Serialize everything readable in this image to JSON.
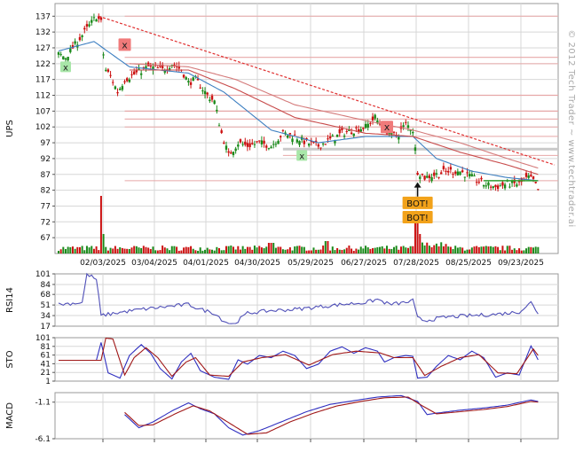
{
  "chart_data": [
    {
      "type": "candlestick",
      "ylabel": "UPS",
      "y_ticks": [
        137,
        132,
        127,
        122,
        117,
        112,
        107,
        102,
        97,
        92,
        87,
        82,
        77,
        72,
        67
      ],
      "ylim": [
        62,
        141
      ],
      "date_ticks": [
        "02/03/2025",
        "03/04/2025",
        "04/01/2025",
        "04/30/2025",
        "05/29/2025",
        "06/27/2025",
        "07/28/2025",
        "08/25/2025",
        "09/23/2025"
      ],
      "close_path": [
        {
          "i": 0,
          "v": 125
        },
        {
          "i": 3,
          "v": 124
        },
        {
          "i": 6,
          "v": 127
        },
        {
          "i": 10,
          "v": 131
        },
        {
          "i": 14,
          "v": 135
        },
        {
          "i": 16,
          "v": 137
        },
        {
          "i": 18,
          "v": 135
        },
        {
          "i": 19,
          "v": 125
        },
        {
          "i": 20,
          "v": 120
        },
        {
          "i": 22,
          "v": 118
        },
        {
          "i": 25,
          "v": 113
        },
        {
          "i": 28,
          "v": 117
        },
        {
          "i": 33,
          "v": 119
        },
        {
          "i": 38,
          "v": 121
        },
        {
          "i": 44,
          "v": 120
        },
        {
          "i": 48,
          "v": 122
        },
        {
          "i": 52,
          "v": 120
        },
        {
          "i": 55,
          "v": 116
        },
        {
          "i": 58,
          "v": 117
        },
        {
          "i": 63,
          "v": 112
        },
        {
          "i": 66,
          "v": 110
        },
        {
          "i": 69,
          "v": 100
        },
        {
          "i": 72,
          "v": 93
        },
        {
          "i": 76,
          "v": 97
        },
        {
          "i": 80,
          "v": 96
        },
        {
          "i": 85,
          "v": 97
        },
        {
          "i": 90,
          "v": 96
        },
        {
          "i": 95,
          "v": 100
        },
        {
          "i": 100,
          "v": 99
        },
        {
          "i": 105,
          "v": 97
        },
        {
          "i": 110,
          "v": 96
        },
        {
          "i": 115,
          "v": 98
        },
        {
          "i": 120,
          "v": 100
        },
        {
          "i": 125,
          "v": 101
        },
        {
          "i": 130,
          "v": 102
        },
        {
          "i": 134,
          "v": 105
        },
        {
          "i": 138,
          "v": 101
        },
        {
          "i": 143,
          "v": 99
        },
        {
          "i": 147,
          "v": 103
        },
        {
          "i": 150,
          "v": 101
        },
        {
          "i": 151,
          "v": 95
        },
        {
          "i": 152,
          "v": 88
        },
        {
          "i": 155,
          "v": 86
        },
        {
          "i": 160,
          "v": 87
        },
        {
          "i": 165,
          "v": 88
        },
        {
          "i": 170,
          "v": 88
        },
        {
          "i": 175,
          "v": 86
        },
        {
          "i": 180,
          "v": 84
        },
        {
          "i": 185,
          "v": 83
        },
        {
          "i": 190,
          "v": 84
        },
        {
          "i": 195,
          "v": 84
        },
        {
          "i": 199,
          "v": 86
        },
        {
          "i": 201,
          "v": 85
        },
        {
          "i": 203,
          "v": 82
        }
      ],
      "moving_averages": [
        {
          "color": "#3d7fc1",
          "points": [
            {
              "i": 0,
              "v": 126
            },
            {
              "i": 15,
              "v": 129
            },
            {
              "i": 30,
              "v": 121
            },
            {
              "i": 55,
              "v": 119
            },
            {
              "i": 70,
              "v": 113
            },
            {
              "i": 90,
              "v": 101
            },
            {
              "i": 110,
              "v": 97
            },
            {
              "i": 130,
              "v": 99
            },
            {
              "i": 150,
              "v": 99
            },
            {
              "i": 160,
              "v": 92
            },
            {
              "i": 175,
              "v": 88
            },
            {
              "i": 190,
              "v": 86
            },
            {
              "i": 203,
              "v": 85
            }
          ]
        },
        {
          "color": "#c84b4b",
          "points": [
            {
              "i": 30,
              "v": 120
            },
            {
              "i": 55,
              "v": 120
            },
            {
              "i": 75,
              "v": 114
            },
            {
              "i": 100,
              "v": 105
            },
            {
              "i": 130,
              "v": 100
            },
            {
              "i": 150,
              "v": 99
            },
            {
              "i": 170,
              "v": 94
            },
            {
              "i": 190,
              "v": 90
            },
            {
              "i": 203,
              "v": 87
            }
          ]
        },
        {
          "color": "#d47a7a",
          "points": [
            {
              "i": 30,
              "v": 122
            },
            {
              "i": 55,
              "v": 121
            },
            {
              "i": 75,
              "v": 117
            },
            {
              "i": 100,
              "v": 109
            },
            {
              "i": 130,
              "v": 104
            },
            {
              "i": 150,
              "v": 101
            },
            {
              "i": 170,
              "v": 97
            },
            {
              "i": 190,
              "v": 92
            },
            {
              "i": 203,
              "v": 89
            }
          ]
        }
      ],
      "horizontal_levels": [
        137,
        124,
        122,
        112,
        107,
        104.5,
        102,
        99,
        95,
        93,
        85
      ],
      "trendline": {
        "from": {
          "i": 17,
          "v": 137
        },
        "to": {
          "i": 210,
          "v": 90
        }
      },
      "markers": [
        {
          "label": "x",
          "kind": "sell",
          "i": 28,
          "v": 128
        },
        {
          "label": "x",
          "kind": "buy",
          "i": 3,
          "v": 121
        },
        {
          "label": "x",
          "kind": "buy",
          "i": 103,
          "v": 93
        },
        {
          "label": "x",
          "kind": "sell",
          "i": 139,
          "v": 102
        },
        {
          "label": "BOT!",
          "kind": "signal",
          "i": 152,
          "v": 78
        },
        {
          "label": "BOT!",
          "kind": "signal",
          "i": 152,
          "v": 73.5
        }
      ]
    },
    {
      "type": "line",
      "ylabel": "RSI14",
      "y_ticks": [
        101,
        84,
        68,
        51,
        34,
        17
      ],
      "ylim": [
        17,
        101
      ],
      "points": [
        {
          "i": 0,
          "v": 52
        },
        {
          "i": 10,
          "v": 55
        },
        {
          "i": 12,
          "v": 101
        },
        {
          "i": 16,
          "v": 92
        },
        {
          "i": 18,
          "v": 34
        },
        {
          "i": 24,
          "v": 38
        },
        {
          "i": 35,
          "v": 44
        },
        {
          "i": 45,
          "v": 48
        },
        {
          "i": 55,
          "v": 52
        },
        {
          "i": 60,
          "v": 44
        },
        {
          "i": 66,
          "v": 38
        },
        {
          "i": 70,
          "v": 25
        },
        {
          "i": 74,
          "v": 20
        },
        {
          "i": 80,
          "v": 38
        },
        {
          "i": 90,
          "v": 42
        },
        {
          "i": 100,
          "v": 44
        },
        {
          "i": 110,
          "v": 48
        },
        {
          "i": 120,
          "v": 52
        },
        {
          "i": 130,
          "v": 55
        },
        {
          "i": 135,
          "v": 60
        },
        {
          "i": 140,
          "v": 52
        },
        {
          "i": 147,
          "v": 55
        },
        {
          "i": 150,
          "v": 58
        },
        {
          "i": 152,
          "v": 30
        },
        {
          "i": 155,
          "v": 26
        },
        {
          "i": 165,
          "v": 32
        },
        {
          "i": 175,
          "v": 34
        },
        {
          "i": 185,
          "v": 36
        },
        {
          "i": 195,
          "v": 40
        },
        {
          "i": 200,
          "v": 55
        },
        {
          "i": 203,
          "v": 38
        }
      ]
    },
    {
      "type": "line",
      "ylabel": "STO",
      "y_ticks": [
        101,
        81,
        61,
        41,
        21,
        1
      ],
      "ylim": [
        1,
        101
      ],
      "series": [
        {
          "color": "#3030c0",
          "points": [
            {
              "i": 0,
              "v": 49
            },
            {
              "i": 16,
              "v": 49
            },
            {
              "i": 18,
              "v": 90
            },
            {
              "i": 21,
              "v": 20
            },
            {
              "i": 26,
              "v": 8
            },
            {
              "i": 30,
              "v": 60
            },
            {
              "i": 35,
              "v": 85
            },
            {
              "i": 39,
              "v": 65
            },
            {
              "i": 43,
              "v": 30
            },
            {
              "i": 48,
              "v": 6
            },
            {
              "i": 52,
              "v": 45
            },
            {
              "i": 56,
              "v": 65
            },
            {
              "i": 60,
              "v": 25
            },
            {
              "i": 66,
              "v": 10
            },
            {
              "i": 72,
              "v": 5
            },
            {
              "i": 76,
              "v": 50
            },
            {
              "i": 80,
              "v": 40
            },
            {
              "i": 85,
              "v": 60
            },
            {
              "i": 90,
              "v": 55
            },
            {
              "i": 95,
              "v": 70
            },
            {
              "i": 100,
              "v": 60
            },
            {
              "i": 105,
              "v": 30
            },
            {
              "i": 110,
              "v": 40
            },
            {
              "i": 115,
              "v": 70
            },
            {
              "i": 120,
              "v": 80
            },
            {
              "i": 125,
              "v": 65
            },
            {
              "i": 130,
              "v": 78
            },
            {
              "i": 135,
              "v": 70
            },
            {
              "i": 138,
              "v": 45
            },
            {
              "i": 142,
              "v": 55
            },
            {
              "i": 147,
              "v": 60
            },
            {
              "i": 150,
              "v": 58
            },
            {
              "i": 152,
              "v": 8
            },
            {
              "i": 156,
              "v": 10
            },
            {
              "i": 160,
              "v": 35
            },
            {
              "i": 165,
              "v": 60
            },
            {
              "i": 170,
              "v": 50
            },
            {
              "i": 175,
              "v": 70
            },
            {
              "i": 180,
              "v": 55
            },
            {
              "i": 185,
              "v": 10
            },
            {
              "i": 190,
              "v": 20
            },
            {
              "i": 195,
              "v": 15
            },
            {
              "i": 200,
              "v": 82
            },
            {
              "i": 203,
              "v": 50
            }
          ]
        },
        {
          "color": "#a01818",
          "points": [
            {
              "i": 0,
              "v": 49
            },
            {
              "i": 18,
              "v": 49
            },
            {
              "i": 20,
              "v": 100
            },
            {
              "i": 23,
              "v": 98
            },
            {
              "i": 28,
              "v": 15
            },
            {
              "i": 32,
              "v": 55
            },
            {
              "i": 37,
              "v": 78
            },
            {
              "i": 42,
              "v": 55
            },
            {
              "i": 48,
              "v": 12
            },
            {
              "i": 54,
              "v": 45
            },
            {
              "i": 58,
              "v": 55
            },
            {
              "i": 64,
              "v": 15
            },
            {
              "i": 72,
              "v": 12
            },
            {
              "i": 78,
              "v": 45
            },
            {
              "i": 86,
              "v": 55
            },
            {
              "i": 96,
              "v": 62
            },
            {
              "i": 106,
              "v": 38
            },
            {
              "i": 116,
              "v": 62
            },
            {
              "i": 126,
              "v": 70
            },
            {
              "i": 136,
              "v": 66
            },
            {
              "i": 142,
              "v": 55
            },
            {
              "i": 150,
              "v": 55
            },
            {
              "i": 155,
              "v": 14
            },
            {
              "i": 162,
              "v": 35
            },
            {
              "i": 170,
              "v": 55
            },
            {
              "i": 178,
              "v": 62
            },
            {
              "i": 186,
              "v": 20
            },
            {
              "i": 194,
              "v": 18
            },
            {
              "i": 201,
              "v": 75
            },
            {
              "i": 203,
              "v": 60
            }
          ]
        }
      ]
    },
    {
      "type": "line",
      "ylabel": "MACD",
      "y_ticks": [
        -1.1,
        -6.1
      ],
      "ylim": [
        -6.1,
        0.2
      ],
      "series": [
        {
          "color": "#3030c0",
          "points": [
            {
              "i": 28,
              "v": -2.8
            },
            {
              "i": 34,
              "v": -4.6
            },
            {
              "i": 40,
              "v": -3.8
            },
            {
              "i": 48,
              "v": -2.3
            },
            {
              "i": 55,
              "v": -1.2
            },
            {
              "i": 60,
              "v": -2.0
            },
            {
              "i": 66,
              "v": -2.7
            },
            {
              "i": 72,
              "v": -4.6
            },
            {
              "i": 78,
              "v": -5.6
            },
            {
              "i": 85,
              "v": -5.0
            },
            {
              "i": 95,
              "v": -3.7
            },
            {
              "i": 105,
              "v": -2.4
            },
            {
              "i": 115,
              "v": -1.4
            },
            {
              "i": 125,
              "v": -0.9
            },
            {
              "i": 135,
              "v": -0.4
            },
            {
              "i": 145,
              "v": -0.2
            },
            {
              "i": 152,
              "v": -1.0
            },
            {
              "i": 156,
              "v": -2.8
            },
            {
              "i": 160,
              "v": -2.6
            },
            {
              "i": 170,
              "v": -2.2
            },
            {
              "i": 180,
              "v": -1.9
            },
            {
              "i": 190,
              "v": -1.5
            },
            {
              "i": 200,
              "v": -0.8
            },
            {
              "i": 203,
              "v": -1.0
            }
          ]
        },
        {
          "color": "#a01818",
          "points": [
            {
              "i": 28,
              "v": -2.5
            },
            {
              "i": 34,
              "v": -4.3
            },
            {
              "i": 40,
              "v": -4.2
            },
            {
              "i": 50,
              "v": -2.6
            },
            {
              "i": 57,
              "v": -1.6
            },
            {
              "i": 64,
              "v": -2.3
            },
            {
              "i": 72,
              "v": -3.9
            },
            {
              "i": 80,
              "v": -5.5
            },
            {
              "i": 88,
              "v": -5.3
            },
            {
              "i": 98,
              "v": -3.8
            },
            {
              "i": 108,
              "v": -2.6
            },
            {
              "i": 118,
              "v": -1.6
            },
            {
              "i": 128,
              "v": -1.0
            },
            {
              "i": 138,
              "v": -0.5
            },
            {
              "i": 148,
              "v": -0.4
            },
            {
              "i": 154,
              "v": -1.6
            },
            {
              "i": 160,
              "v": -2.7
            },
            {
              "i": 170,
              "v": -2.4
            },
            {
              "i": 180,
              "v": -2.1
            },
            {
              "i": 190,
              "v": -1.7
            },
            {
              "i": 200,
              "v": -1.0
            },
            {
              "i": 203,
              "v": -1.1
            }
          ]
        }
      ]
    }
  ],
  "watermark": "© 2012 Tech Trader ~ www.techtrader.ai",
  "colors": {
    "up": "#1a8a1a",
    "down": "#cc1111",
    "grid": "#d7d7d7",
    "level": "#e7a8a8",
    "trend": "#e03030"
  }
}
